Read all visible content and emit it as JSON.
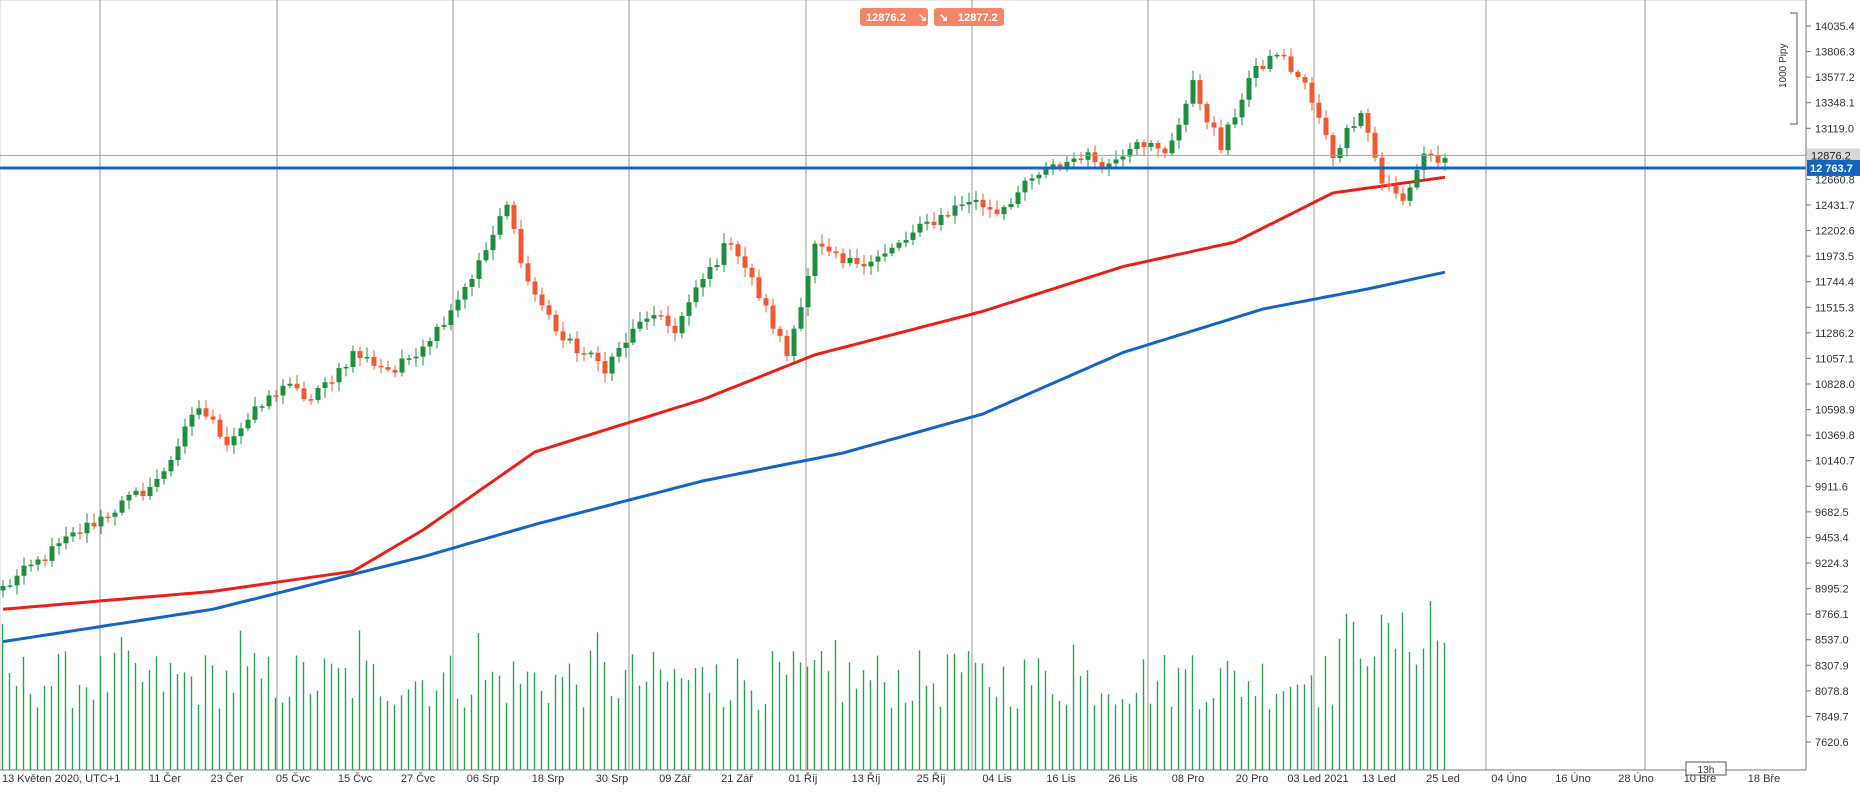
{
  "chart_data": {
    "type": "candlestick",
    "timezone_label": "13 Květen 2020, UTC+1",
    "x_tick_labels": [
      "13 Květen 2020, UTC+1",
      "11 Čer",
      "23 Čer",
      "05 Čvc",
      "15 Čvc",
      "27 Čvc",
      "06 Srp",
      "18 Srp",
      "30 Srp",
      "09 Zář",
      "21 Zář",
      "01 Říj",
      "13 Říj",
      "25 Říj",
      "04 Lis",
      "16 Lis",
      "26 Lis",
      "08 Pro",
      "20 Pro",
      "03 Led 2021",
      "13 Led",
      "25 Led",
      "04 Úno",
      "16 Úno",
      "28 Úno",
      "10 Bře",
      "18 Bře"
    ],
    "y_tick_labels": [
      "14035.4",
      "13806.3",
      "13577.2",
      "13348.1",
      "13119.0",
      "12876.2",
      "12660.8",
      "12431.7",
      "12202.6",
      "11973.5",
      "11744.4",
      "11515.3",
      "11286.2",
      "11057.1",
      "10828.0",
      "10598.9",
      "10369.8",
      "10140.7",
      "9911.6",
      "9682.5",
      "9453.4",
      "9224.3",
      "8995.2",
      "8766.1",
      "8537.0",
      "8307.9",
      "8078.8",
      "7849.7",
      "7620.6"
    ],
    "ylim": [
      7560,
      14140
    ],
    "bid_label": "12876.2",
    "ask_label": "12877.2",
    "current_price_label": "12876.2",
    "level_line_label": "12 763.7",
    "level_line_value": 12763.7,
    "scale_label": "1000 Pipy",
    "timeframe_label": "13h",
    "anchors": [
      {
        "i": 0,
        "p": 9000
      },
      {
        "i": 10,
        "p": 9470
      },
      {
        "i": 22,
        "p": 9950
      },
      {
        "i": 28,
        "p": 10620
      },
      {
        "i": 32,
        "p": 10320
      },
      {
        "i": 40,
        "p": 10820
      },
      {
        "i": 44,
        "p": 10680
      },
      {
        "i": 50,
        "p": 11100
      },
      {
        "i": 56,
        "p": 10940
      },
      {
        "i": 62,
        "p": 11320
      },
      {
        "i": 68,
        "p": 11900
      },
      {
        "i": 72,
        "p": 12420
      },
      {
        "i": 75,
        "p": 11740
      },
      {
        "i": 80,
        "p": 11220
      },
      {
        "i": 86,
        "p": 10980
      },
      {
        "i": 92,
        "p": 11440
      },
      {
        "i": 96,
        "p": 11320
      },
      {
        "i": 100,
        "p": 11760
      },
      {
        "i": 104,
        "p": 12130
      },
      {
        "i": 108,
        "p": 11620
      },
      {
        "i": 112,
        "p": 11090
      },
      {
        "i": 116,
        "p": 12060
      },
      {
        "i": 120,
        "p": 11900
      },
      {
        "i": 126,
        "p": 11980
      },
      {
        "i": 132,
        "p": 12260
      },
      {
        "i": 138,
        "p": 12480
      },
      {
        "i": 142,
        "p": 12380
      },
      {
        "i": 148,
        "p": 12700
      },
      {
        "i": 154,
        "p": 12880
      },
      {
        "i": 158,
        "p": 12790
      },
      {
        "i": 162,
        "p": 13040
      },
      {
        "i": 166,
        "p": 12870
      },
      {
        "i": 170,
        "p": 13500
      },
      {
        "i": 174,
        "p": 12940
      },
      {
        "i": 178,
        "p": 13560
      },
      {
        "i": 182,
        "p": 13800
      },
      {
        "i": 186,
        "p": 13500
      },
      {
        "i": 190,
        "p": 12880
      },
      {
        "i": 194,
        "p": 13300
      },
      {
        "i": 197,
        "p": 12640
      },
      {
        "i": 200,
        "p": 12460
      },
      {
        "i": 203,
        "p": 12900
      },
      {
        "i": 206,
        "p": 12800
      }
    ],
    "ma_red": [
      {
        "i": 0,
        "p": 8810
      },
      {
        "i": 30,
        "p": 8970
      },
      {
        "i": 50,
        "p": 9150
      },
      {
        "i": 60,
        "p": 9520
      },
      {
        "i": 76,
        "p": 10220
      },
      {
        "i": 100,
        "p": 10690
      },
      {
        "i": 116,
        "p": 11090
      },
      {
        "i": 140,
        "p": 11480
      },
      {
        "i": 160,
        "p": 11880
      },
      {
        "i": 176,
        "p": 12100
      },
      {
        "i": 190,
        "p": 12540
      },
      {
        "i": 206,
        "p": 12680
      }
    ],
    "ma_blue": [
      {
        "i": 0,
        "p": 8520
      },
      {
        "i": 30,
        "p": 8810
      },
      {
        "i": 60,
        "p": 9280
      },
      {
        "i": 76,
        "p": 9570
      },
      {
        "i": 100,
        "p": 9960
      },
      {
        "i": 120,
        "p": 10210
      },
      {
        "i": 140,
        "p": 10560
      },
      {
        "i": 160,
        "p": 11110
      },
      {
        "i": 180,
        "p": 11500
      },
      {
        "i": 195,
        "p": 11680
      },
      {
        "i": 206,
        "p": 11830
      }
    ]
  }
}
